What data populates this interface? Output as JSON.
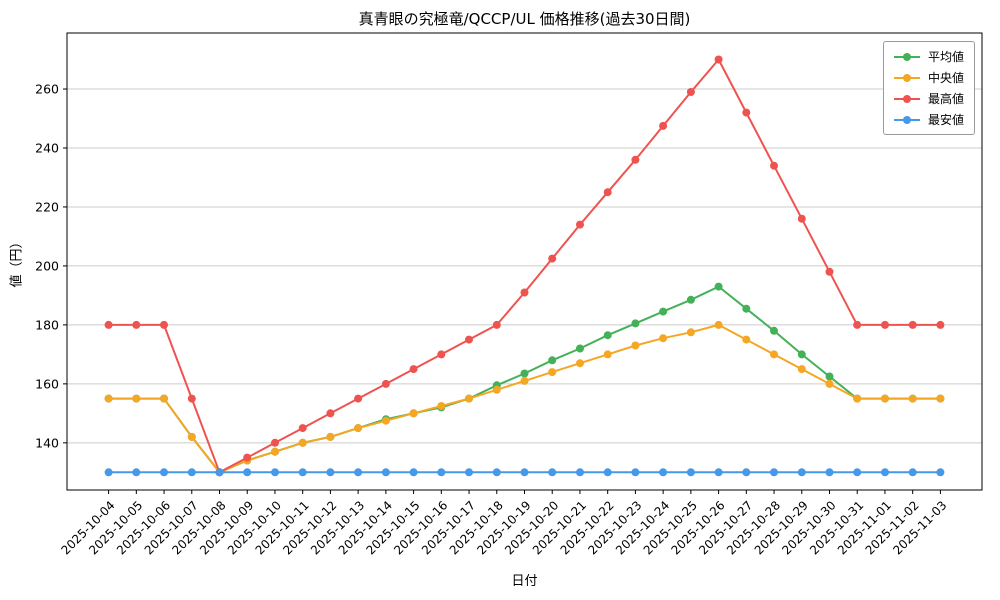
{
  "chart_data": {
    "type": "line",
    "title": "真青眼の究極竜/QCCP/UL 価格推移(過去30日間)",
    "xlabel": "日付",
    "ylabel": "値（円）",
    "x": [
      "2025-10-04",
      "2025-10-05",
      "2025-10-06",
      "2025-10-07",
      "2025-10-08",
      "2025-10-09",
      "2025-10-10",
      "2025-10-11",
      "2025-10-12",
      "2025-10-13",
      "2025-10-14",
      "2025-10-15",
      "2025-10-16",
      "2025-10-17",
      "2025-10-18",
      "2025-10-19",
      "2025-10-20",
      "2025-10-21",
      "2025-10-22",
      "2025-10-23",
      "2025-10-24",
      "2025-10-25",
      "2025-10-26",
      "2025-10-27",
      "2025-10-28",
      "2025-10-29",
      "2025-10-30",
      "2025-10-31",
      "2025-11-01",
      "2025-11-02",
      "2025-11-03"
    ],
    "yticks": [
      140,
      160,
      180,
      200,
      220,
      240,
      260
    ],
    "ylim": [
      124,
      279
    ],
    "grid": "y",
    "legend_position": "upper right",
    "colors": {
      "grid": "#cccccc",
      "axis": "#000000",
      "background": "#ffffff"
    },
    "series": [
      {
        "id": "avg",
        "name": "平均値",
        "color": "#44b159",
        "values": [
          155,
          155,
          155,
          142,
          130,
          134,
          137,
          140,
          142,
          145,
          148,
          150,
          152,
          155,
          159.5,
          163.5,
          168,
          172,
          176.5,
          180.5,
          184.5,
          188.5,
          193,
          185.5,
          178,
          170,
          162.5,
          155,
          155,
          155,
          155
        ]
      },
      {
        "id": "median",
        "name": "中央値",
        "color": "#f5a623",
        "values": [
          155,
          155,
          155,
          142,
          130,
          134,
          137,
          140,
          142,
          145,
          147.5,
          150,
          152.5,
          155,
          158,
          161,
          164,
          167,
          170,
          173,
          175.5,
          177.5,
          180,
          175,
          170,
          165,
          160,
          155,
          155,
          155,
          155
        ]
      },
      {
        "id": "max",
        "name": "最高値",
        "color": "#ef5350",
        "values": [
          180,
          180,
          180,
          155,
          130,
          135,
          140,
          145,
          150,
          155,
          160,
          165,
          170,
          175,
          180,
          191,
          202.5,
          214,
          225,
          236,
          247.5,
          259,
          270,
          252,
          234,
          216,
          198,
          180,
          180,
          180,
          180
        ]
      },
      {
        "id": "min",
        "name": "最安値",
        "color": "#4599e8",
        "values": [
          130,
          130,
          130,
          130,
          130,
          130,
          130,
          130,
          130,
          130,
          130,
          130,
          130,
          130,
          130,
          130,
          130,
          130,
          130,
          130,
          130,
          130,
          130,
          130,
          130,
          130,
          130,
          130,
          130,
          130,
          130
        ]
      }
    ]
  }
}
